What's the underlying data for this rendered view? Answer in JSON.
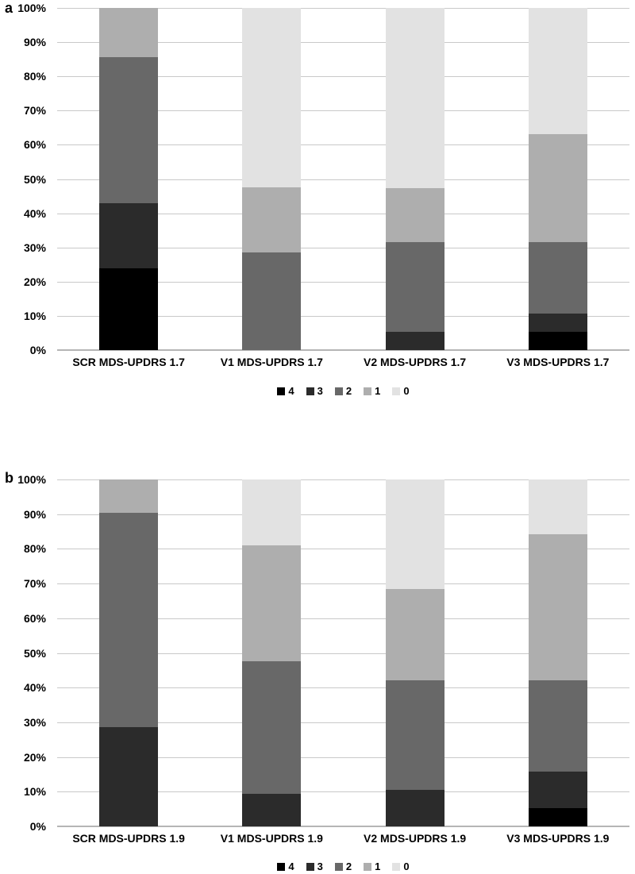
{
  "figure": {
    "panel_a_label": "a",
    "panel_b_label": "b"
  },
  "colors": {
    "background": "#ffffff",
    "gridline": "#c9c9c9",
    "axis_line": "#b5b5b5",
    "text": "#000000"
  },
  "chart_data": [
    {
      "type": "bar",
      "subtype": "stacked_100_percent",
      "panel": "a",
      "title": "",
      "xlabel": "",
      "ylabel": "",
      "ylim": [
        0,
        100
      ],
      "grid": true,
      "legend_position": "bottom",
      "y_ticks": [
        "100%",
        "90%",
        "80%",
        "70%",
        "60%",
        "50%",
        "40%",
        "30%",
        "20%",
        "10%",
        "0%"
      ],
      "categories": [
        "SCR MDS-UPDRS 1.7",
        "V1 MDS-UPDRS 1.7",
        "V2 MDS-UPDRS 1.7",
        "V3 MDS-UPDRS 1.7"
      ],
      "series": [
        {
          "name": "4",
          "color": "#000000",
          "values": [
            23.8,
            0,
            0,
            5.3
          ]
        },
        {
          "name": "3",
          "color": "#2b2b2b",
          "values": [
            19.1,
            0,
            5.3,
            5.3
          ]
        },
        {
          "name": "2",
          "color": "#686868",
          "values": [
            42.8,
            28.6,
            26.3,
            21.0
          ]
        },
        {
          "name": "1",
          "color": "#aeaeae",
          "values": [
            14.3,
            19.0,
            15.8,
            31.6
          ]
        },
        {
          "name": "0",
          "color": "#e2e2e2",
          "values": [
            0,
            52.4,
            52.6,
            36.8
          ]
        }
      ]
    },
    {
      "type": "bar",
      "subtype": "stacked_100_percent",
      "panel": "b",
      "title": "",
      "xlabel": "",
      "ylabel": "",
      "ylim": [
        0,
        100
      ],
      "grid": true,
      "legend_position": "bottom",
      "y_ticks": [
        "100%",
        "90%",
        "80%",
        "70%",
        "60%",
        "50%",
        "40%",
        "30%",
        "20%",
        "10%",
        "0%"
      ],
      "categories": [
        "SCR MDS-UPDRS 1.9",
        "V1 MDS-UPDRS 1.9",
        "V2 MDS-UPDRS 1.9",
        "V3 MDS-UPDRS 1.9"
      ],
      "series": [
        {
          "name": "4",
          "color": "#000000",
          "values": [
            0,
            0,
            0,
            5.3
          ]
        },
        {
          "name": "3",
          "color": "#2b2b2b",
          "values": [
            28.6,
            9.5,
            10.5,
            10.5
          ]
        },
        {
          "name": "2",
          "color": "#686868",
          "values": [
            61.9,
            38.1,
            31.6,
            26.3
          ]
        },
        {
          "name": "1",
          "color": "#aeaeae",
          "values": [
            9.5,
            33.3,
            26.3,
            42.1
          ]
        },
        {
          "name": "0",
          "color": "#e2e2e2",
          "values": [
            0,
            19.1,
            31.6,
            15.8
          ]
        }
      ]
    }
  ]
}
